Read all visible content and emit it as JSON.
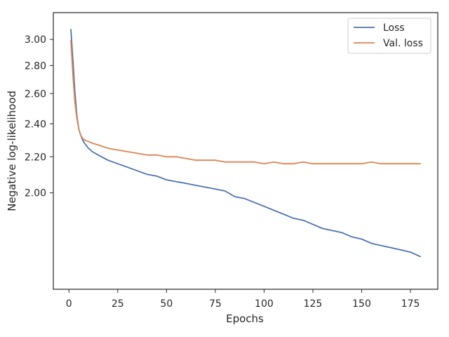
{
  "chart_data": {
    "type": "line",
    "title": "",
    "xlabel": "Epochs",
    "ylabel": "Negative log-likelihood",
    "xlim": [
      -8,
      189
    ],
    "ylim": [
      1.55,
      3.22
    ],
    "y_scale": "log",
    "x_ticks": [
      0,
      25,
      50,
      75,
      100,
      125,
      150,
      175
    ],
    "x_tick_labels": [
      "0",
      "25",
      "50",
      "75",
      "100",
      "125",
      "150",
      "175"
    ],
    "y_ticks": [
      2.0,
      2.2,
      2.4,
      2.6,
      2.8,
      3.0
    ],
    "y_tick_labels": [
      "2.00",
      "2.20",
      "2.40",
      "2.60",
      "2.80",
      "3.00"
    ],
    "grid": false,
    "legend_position": "top-right",
    "series": [
      {
        "name": "Loss",
        "color": "#4c72b0",
        "x": [
          1,
          2,
          3,
          4,
          5,
          6,
          7,
          8,
          10,
          12,
          15,
          20,
          25,
          30,
          35,
          40,
          45,
          50,
          55,
          60,
          65,
          70,
          75,
          80,
          85,
          90,
          95,
          100,
          105,
          110,
          115,
          120,
          125,
          130,
          135,
          140,
          145,
          150,
          155,
          160,
          165,
          170,
          175,
          180
        ],
        "y": [
          3.08,
          2.85,
          2.62,
          2.46,
          2.37,
          2.33,
          2.3,
          2.28,
          2.25,
          2.23,
          2.21,
          2.18,
          2.16,
          2.14,
          2.12,
          2.1,
          2.09,
          2.07,
          2.06,
          2.05,
          2.04,
          2.03,
          2.02,
          2.01,
          1.98,
          1.97,
          1.95,
          1.93,
          1.91,
          1.89,
          1.87,
          1.86,
          1.84,
          1.82,
          1.81,
          1.8,
          1.78,
          1.77,
          1.75,
          1.74,
          1.73,
          1.72,
          1.71,
          1.69
        ]
      },
      {
        "name": "Val. loss",
        "color": "#dd8452",
        "x": [
          1,
          2,
          3,
          4,
          5,
          6,
          7,
          8,
          10,
          12,
          15,
          20,
          25,
          30,
          35,
          40,
          45,
          50,
          55,
          60,
          65,
          70,
          75,
          80,
          85,
          90,
          95,
          100,
          105,
          110,
          115,
          120,
          125,
          130,
          135,
          140,
          145,
          150,
          155,
          160,
          165,
          170,
          175,
          180
        ],
        "y": [
          2.99,
          2.74,
          2.55,
          2.44,
          2.37,
          2.33,
          2.31,
          2.3,
          2.29,
          2.28,
          2.27,
          2.25,
          2.24,
          2.23,
          2.22,
          2.21,
          2.21,
          2.2,
          2.2,
          2.19,
          2.18,
          2.18,
          2.18,
          2.17,
          2.17,
          2.17,
          2.17,
          2.16,
          2.17,
          2.16,
          2.16,
          2.17,
          2.16,
          2.16,
          2.16,
          2.16,
          2.16,
          2.16,
          2.17,
          2.16,
          2.16,
          2.16,
          2.16,
          2.16
        ]
      }
    ]
  }
}
